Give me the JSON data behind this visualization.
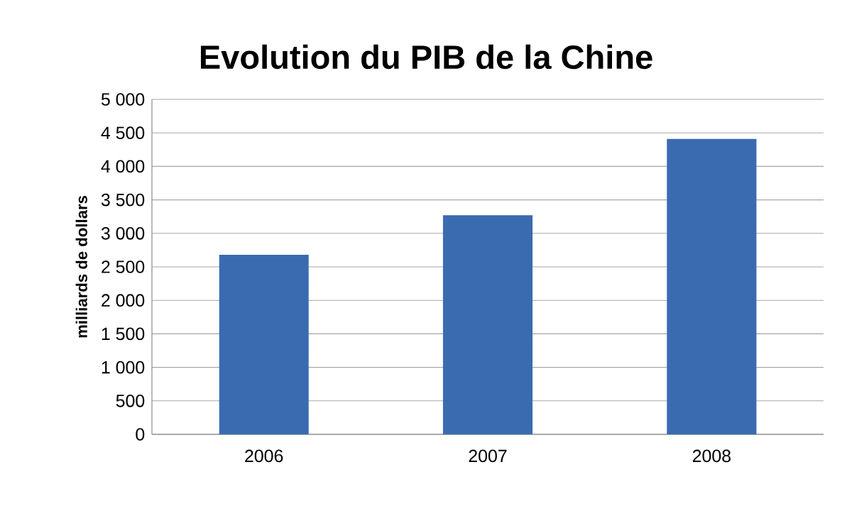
{
  "chart_data": {
    "type": "bar",
    "title": "Evolution du PIB de la Chine",
    "ylabel": "milliards de dollars",
    "categories": [
      "2006",
      "2007",
      "2008"
    ],
    "values": [
      2680,
      3270,
      4410
    ],
    "color": "#3a6bb0",
    "ylim": [
      0,
      5000
    ],
    "yticks": [
      0,
      500,
      {
        "value": 1000,
        "label": "1 000"
      },
      {
        "value": 1500,
        "label": "1 500"
      },
      {
        "value": 2000,
        "label": "2 000"
      },
      {
        "value": 2500,
        "label": "2 500"
      },
      {
        "value": 3000,
        "label": "3 000"
      },
      {
        "value": 3500,
        "label": "3 500"
      },
      {
        "value": 4000,
        "label": "4 000"
      },
      {
        "value": 4500,
        "label": "4 500"
      },
      {
        "value": 5000,
        "label": "5 000"
      }
    ],
    "grid": "y"
  }
}
